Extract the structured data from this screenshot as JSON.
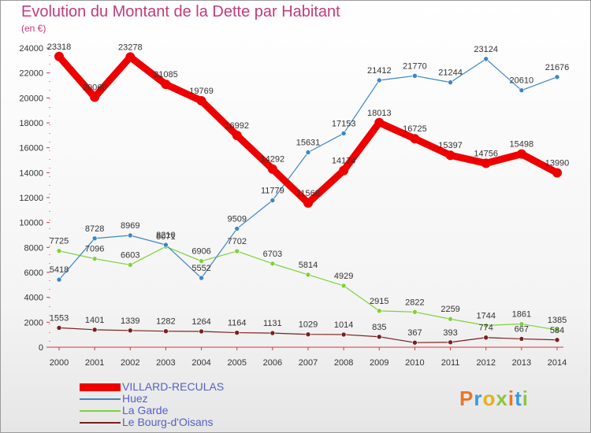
{
  "header": {
    "title": "Evolution du Montant de la Dette par Habitant",
    "unit": "(en €)"
  },
  "logo": {
    "text": "Proxiti"
  },
  "chart_data": {
    "type": "line",
    "title": "Evolution du Montant de la Dette par Habitant",
    "ylabel": "(en €)",
    "xlabel": "",
    "x": [
      "2000",
      "2001",
      "2002",
      "2003",
      "2004",
      "2005",
      "2006",
      "2007",
      "2008",
      "2009",
      "2010",
      "2011",
      "2012",
      "2013",
      "2014"
    ],
    "ylim": [
      0,
      24000
    ],
    "yticks": [
      0,
      2000,
      4000,
      6000,
      8000,
      10000,
      12000,
      14000,
      16000,
      18000,
      20000,
      22000,
      24000
    ],
    "grid": false,
    "legend_position": "bottom-left",
    "series": [
      {
        "name": "VILLARD-RECULAS",
        "color": "#ee0000",
        "values": [
          23318,
          20060,
          23278,
          21085,
          19769,
          16992,
          14292,
          11568,
          14174,
          18013,
          16725,
          15397,
          14756,
          15498,
          13990
        ]
      },
      {
        "name": "Huez",
        "color": "#3d86c6",
        "values": [
          5418,
          8728,
          8969,
          8210,
          5552,
          9509,
          11779,
          15631,
          17153,
          21412,
          21770,
          21244,
          23124,
          20610,
          21676
        ]
      },
      {
        "name": "La Garde",
        "color": "#7ed23c",
        "values": [
          7725,
          7096,
          6603,
          8071,
          6906,
          7702,
          6703,
          5814,
          4929,
          2915,
          2822,
          2259,
          1744,
          1861,
          1385
        ]
      },
      {
        "name": "Le Bourg-d'Oisans",
        "color": "#7a1f1f",
        "values": [
          1553,
          1401,
          1339,
          1282,
          1264,
          1164,
          1131,
          1029,
          1014,
          835,
          367,
          393,
          774,
          667,
          584
        ]
      }
    ]
  }
}
